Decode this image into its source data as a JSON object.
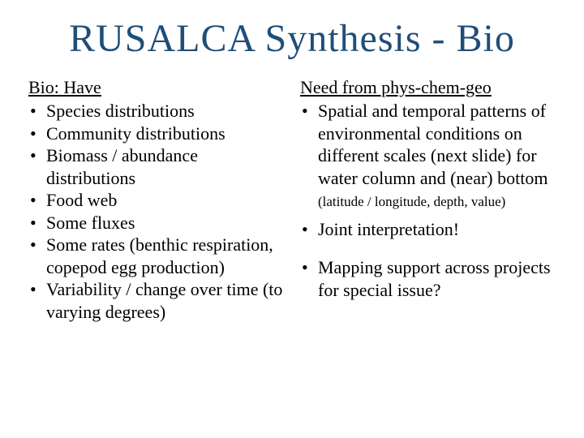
{
  "title": "RUSALCA Synthesis - Bio",
  "left": {
    "header": "Bio: Have",
    "items": [
      "Species distributions",
      "Community distributions",
      "Biomass / abundance distributions",
      "Food web",
      "Some fluxes",
      "Some rates (benthic respiration, copepod egg production)",
      "Variability / change over time (to varying degrees)"
    ]
  },
  "right": {
    "header": "Need from phys-chem-geo",
    "item1_main": "Spatial and temporal patterns of environmental conditions on different scales (next slide) for water column and (near) bottom ",
    "item1_note": "(latitude / longitude, depth, value)",
    "item2": "Joint interpretation!",
    "item3": "Mapping support across projects for special issue?"
  },
  "colors": {
    "title": "#1f4e79",
    "text": "#000000",
    "background": "#ffffff"
  },
  "typography": {
    "title_fontsize": 48,
    "header_fontsize": 22,
    "body_fontsize": 22,
    "note_fontsize": 17,
    "font_family": "Georgia, serif"
  }
}
